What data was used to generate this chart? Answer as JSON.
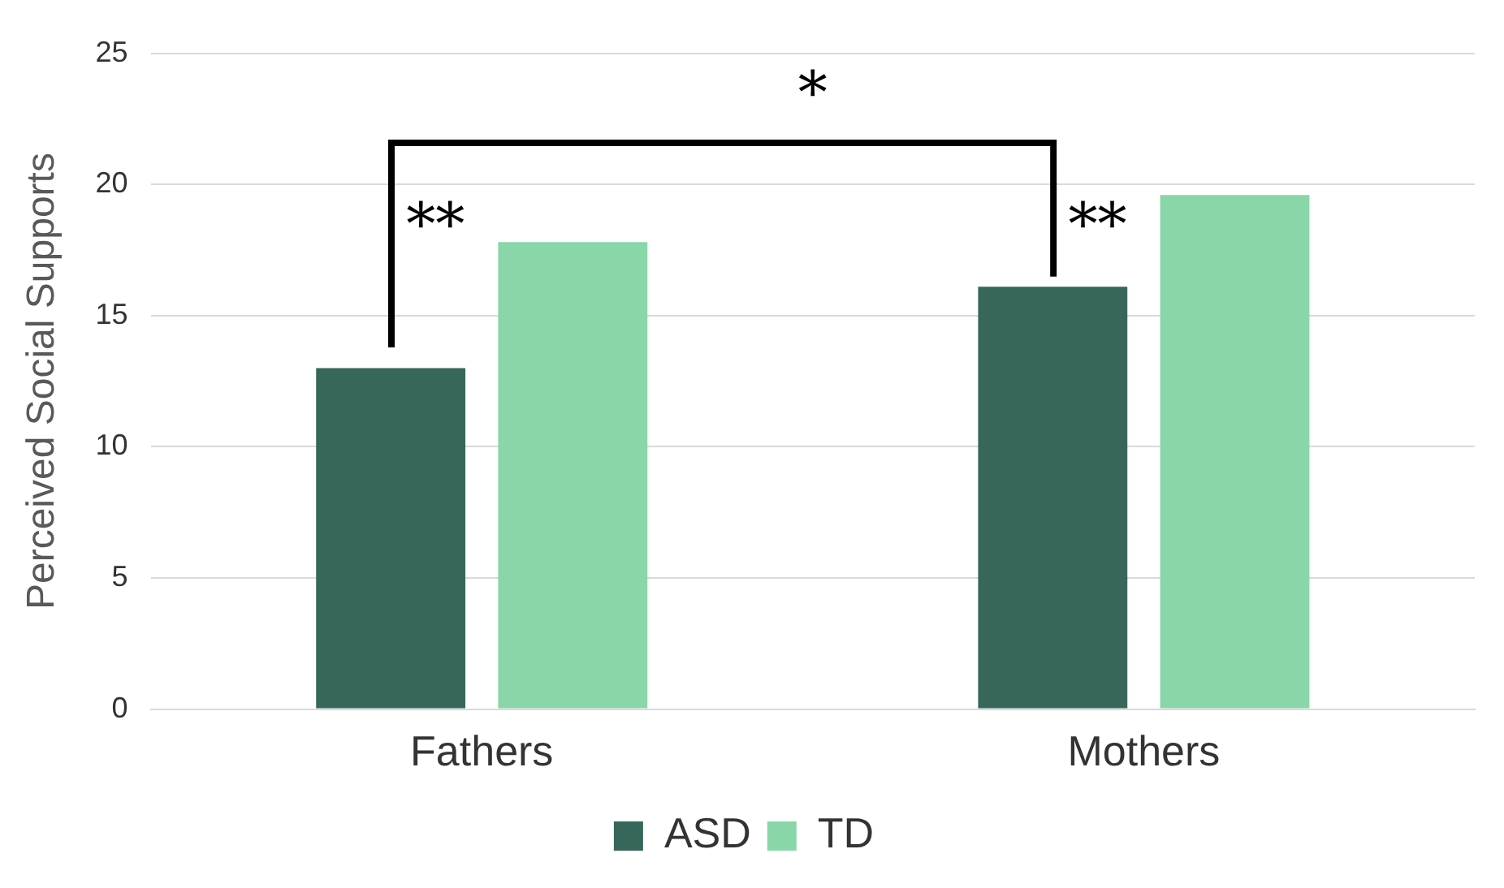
{
  "chart_data": {
    "type": "bar",
    "ylabel": "Perceived Social Supports",
    "categories": [
      "Fathers",
      "Mothers"
    ],
    "series": [
      {
        "name": "ASD",
        "color": "#36675a",
        "values": [
          13.0,
          16.1
        ]
      },
      {
        "name": "TD",
        "color": "#89d6a8",
        "values": [
          17.8,
          19.6
        ]
      }
    ],
    "ylim": [
      0,
      25
    ],
    "yticks": [
      0,
      5,
      10,
      15,
      20,
      25
    ],
    "grid": "y",
    "legend": "bottom",
    "annotations": [
      "*",
      "**",
      "**"
    ]
  }
}
